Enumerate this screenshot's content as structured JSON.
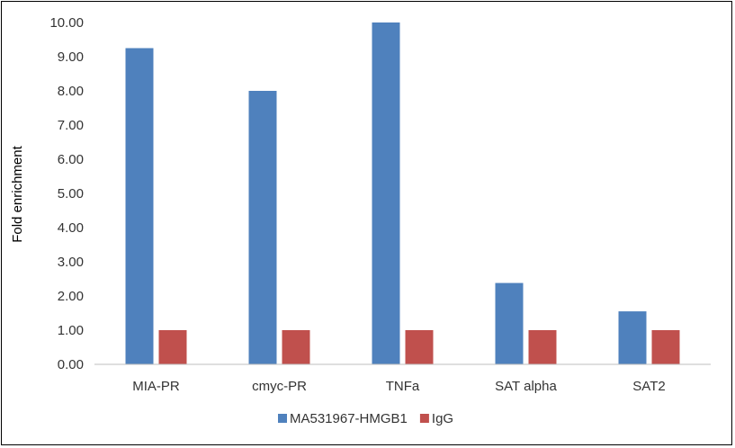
{
  "chart_data": {
    "type": "bar",
    "title": "",
    "xlabel": "",
    "ylabel": "Fold enrichment",
    "ylim": [
      0,
      10
    ],
    "yticks": [
      "0.00",
      "1.00",
      "2.00",
      "3.00",
      "4.00",
      "5.00",
      "6.00",
      "7.00",
      "8.00",
      "9.00",
      "10.00"
    ],
    "categories": [
      "MIA-PR",
      "cmyc-PR",
      "TNFa",
      "SAT alpha",
      "SAT2"
    ],
    "series": [
      {
        "name": "MA531967-HMGB1",
        "color": "#4F81BD",
        "values": [
          9.25,
          8.0,
          10.0,
          2.38,
          1.55
        ]
      },
      {
        "name": "IgG",
        "color": "#C0504D",
        "values": [
          1.0,
          1.0,
          1.0,
          1.0,
          1.0
        ]
      }
    ],
    "grid": false,
    "legend_position": "bottom"
  }
}
